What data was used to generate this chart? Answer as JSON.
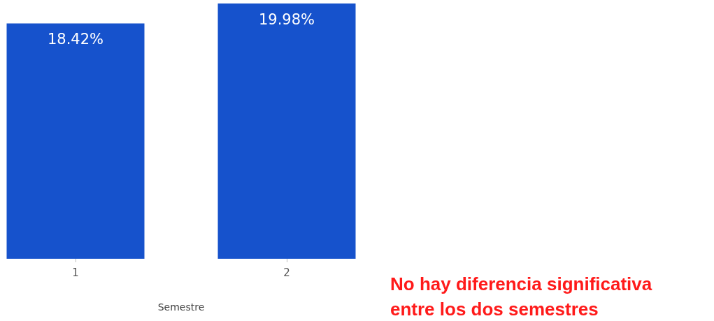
{
  "chart_data": {
    "type": "bar",
    "xlabel": "Semestre",
    "categories": [
      "1",
      "2"
    ],
    "values": [
      18.42,
      19.98
    ],
    "value_labels": [
      "18.42%",
      "19.98%"
    ],
    "color": "#1652cc",
    "tick_labels": "x",
    "annotations": [
      "No hay diferencia significativa entre los dos semestres"
    ]
  }
}
